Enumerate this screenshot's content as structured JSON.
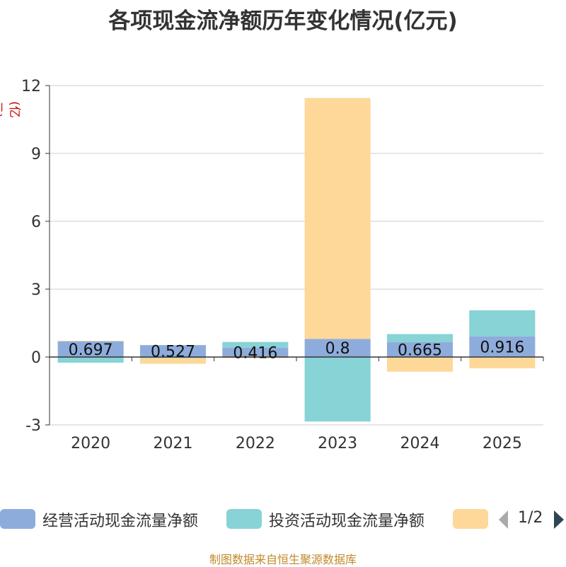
{
  "chart_data": {
    "type": "bar",
    "stacked": true,
    "title": "各项现金流净额历年变化情况(亿元)",
    "ylabel": "(亿元)",
    "ylim": [
      -3,
      12
    ],
    "yticks": [
      -3,
      0,
      3,
      6,
      9,
      12
    ],
    "grid": true,
    "categories": [
      "2020",
      "2021",
      "2022",
      "2023",
      "2024",
      "2025"
    ],
    "series": [
      {
        "name": "经营活动现金流量净额",
        "color": "#8eacdb",
        "values": [
          0.697,
          0.527,
          0.416,
          0.8,
          0.665,
          0.916
        ],
        "labels": [
          "0.697",
          "0.527",
          "0.416",
          "0.8",
          "0.665",
          "0.916"
        ]
      },
      {
        "name": "投资活动现金流量净额",
        "color": "#87d3d6",
        "values": [
          -0.25,
          -0.05,
          0.25,
          -2.85,
          0.35,
          1.15
        ]
      },
      {
        "name": "",
        "color": "#fdd898",
        "values": [
          0.02,
          -0.25,
          -0.05,
          10.65,
          -0.65,
          -0.5
        ]
      }
    ],
    "legend_position": "bottom"
  },
  "legend": {
    "page": "1/2"
  },
  "footer": "制图数据来自恒生聚源数据库"
}
